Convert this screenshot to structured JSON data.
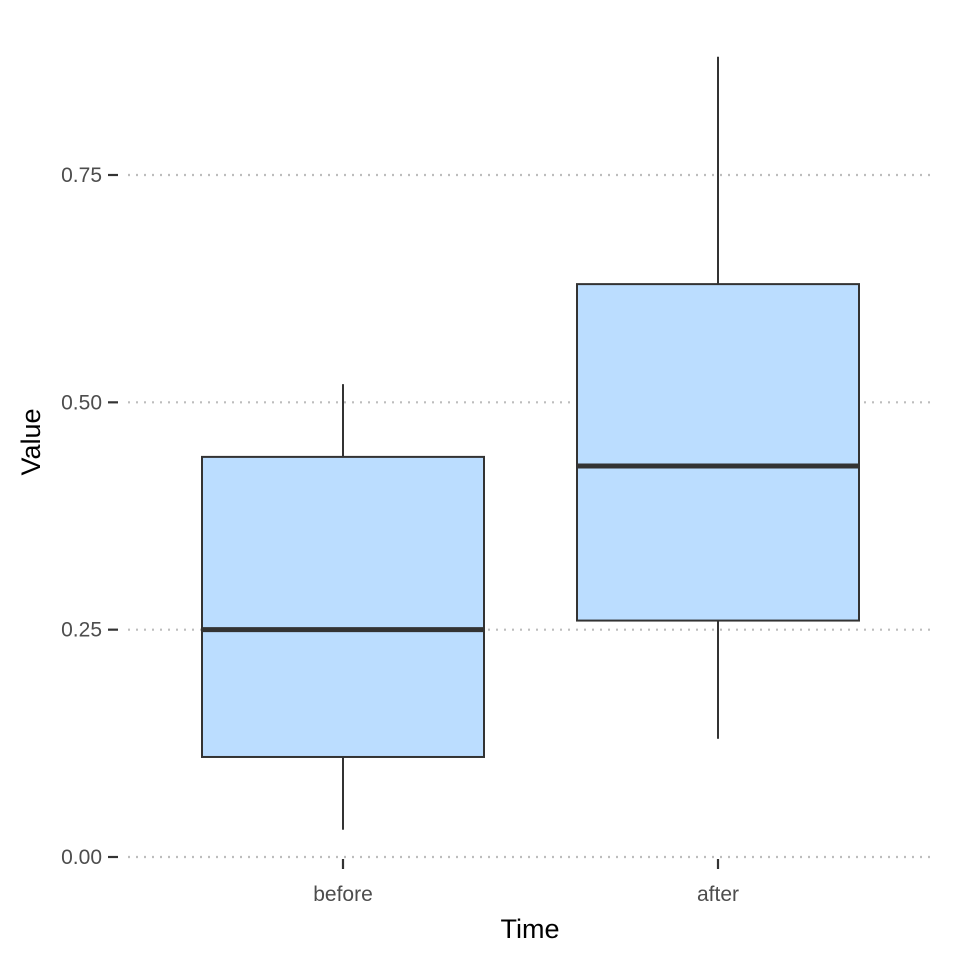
{
  "chart_data": {
    "type": "boxplot",
    "title": "",
    "xlabel": "Time",
    "ylabel": "Value",
    "categories": [
      "before",
      "after"
    ],
    "ylim": [
      -0.03,
      0.92
    ],
    "yticks": [
      0.0,
      0.25,
      0.5,
      0.75
    ],
    "ytick_labels": [
      "0.00",
      "0.25",
      "0.50",
      "0.75"
    ],
    "grid": "horizontal-dotted",
    "boxes": [
      {
        "category": "before",
        "whisker_low": 0.03,
        "q1": 0.11,
        "median": 0.25,
        "q3": 0.44,
        "whisker_high": 0.52
      },
      {
        "category": "after",
        "whisker_low": 0.13,
        "q1": 0.26,
        "median": 0.43,
        "q3": 0.63,
        "whisker_high": 0.88
      }
    ],
    "colors": {
      "box_fill": "#bbddff",
      "box_stroke": "#333333",
      "grid": "#bdbdbd",
      "tick_text": "#4d4d4d",
      "axis_text": "#000000"
    }
  }
}
